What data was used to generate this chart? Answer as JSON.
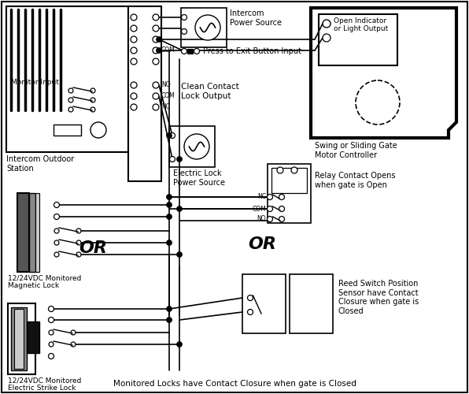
{
  "bg_color": "#ffffff",
  "line_color": "#000000",
  "fig_width": 5.96,
  "fig_height": 5.0,
  "labels": {
    "intercom_power": "Intercom\nPower Source",
    "press_exit": "Press to Exit Button Input",
    "clean_contact": "Clean Contact\nLock Output",
    "monitor_input": "Monitor Input",
    "intercom_outdoor": "Intercom Outdoor\nStation",
    "electric_lock": "Electric Lock\nPower Source",
    "magnetic_lock": "12/24VDC Monitored\nMagnetic Lock",
    "electric_strike": "12/24VDC Monitored\nElectric Strike Lock",
    "or1": "OR",
    "or2": "OR",
    "swing_gate": "Swing or Sliding Gate\nMotor Controller",
    "open_indicator": "Open Indicator\nor Light Output",
    "relay_contact": "Relay Contact Opens\nwhen gate is Open",
    "reed_switch": "Reed Switch Position\nSensor have Contact\nClosure when gate is\nClosed",
    "bottom_label": "Monitored Locks have Contact Closure when gate is Closed"
  }
}
